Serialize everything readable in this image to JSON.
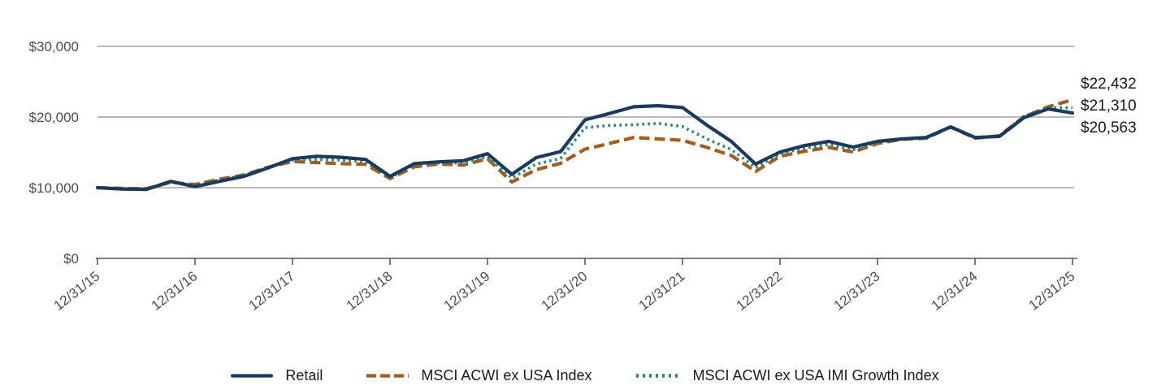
{
  "chart_data": {
    "type": "line",
    "title": "",
    "xlabel": "",
    "ylabel": "",
    "x_unit": "quarterly points from 12/31/15 to 12/31/25",
    "x_ticks": [
      "12/31/15",
      "12/31/16",
      "12/31/17",
      "12/31/18",
      "12/31/19",
      "12/31/20",
      "12/31/21",
      "12/31/22",
      "12/31/23",
      "12/31/24",
      "12/31/25"
    ],
    "y_ticks": [
      "$0",
      "$10,000",
      "$20,000",
      "$30,000"
    ],
    "y_tick_values": [
      0,
      10000,
      20000,
      30000
    ],
    "ylim": [
      0,
      30000
    ],
    "grid": "horizontal",
    "legend_position": "bottom-center",
    "series": [
      {
        "name": "Retail",
        "color": "#1b3a5e",
        "style": "solid",
        "final_value_label": "$20,563",
        "values": [
          10000,
          9800,
          9750,
          10900,
          10150,
          10900,
          11600,
          12800,
          14100,
          14450,
          14300,
          14000,
          11600,
          13400,
          13650,
          13800,
          14800,
          11900,
          14250,
          15100,
          19600,
          20500,
          21450,
          21600,
          21350,
          18850,
          16550,
          13350,
          15050,
          15950,
          16550,
          15750,
          16550,
          16900,
          17100,
          18600,
          17100,
          17250,
          19900,
          21150,
          20563
        ]
      },
      {
        "name": "MSCI ACWI ex USA Index",
        "color": "#a45d1d",
        "style": "dashed",
        "final_value_label": "$22,432",
        "values": [
          10000,
          9900,
          9850,
          10750,
          10450,
          11200,
          11800,
          12900,
          13700,
          13550,
          13400,
          13300,
          11300,
          12950,
          13350,
          13200,
          14100,
          10800,
          12550,
          13450,
          15450,
          16250,
          17100,
          16900,
          16700,
          15700,
          14550,
          12300,
          14450,
          15150,
          15700,
          15050,
          16250,
          16850,
          17000,
          18600,
          17000,
          17350,
          20000,
          21450,
          22432
        ]
      },
      {
        "name": "MSCI ACWI ex USA IMI Growth Index",
        "color": "#1f8a7a",
        "style": "dotted",
        "final_value_label": "$21,310",
        "values": [
          10000,
          9850,
          9800,
          10800,
          10300,
          11100,
          11750,
          12850,
          13900,
          14000,
          13900,
          13650,
          11400,
          13200,
          13500,
          13500,
          14400,
          11350,
          13350,
          14150,
          18500,
          18800,
          18900,
          19100,
          18650,
          16900,
          15400,
          12850,
          14800,
          15600,
          16100,
          15350,
          16400,
          16900,
          17050,
          18650,
          17050,
          17300,
          20100,
          21350,
          21310
        ]
      }
    ],
    "end_labels": [
      "$22,432",
      "$21,310",
      "$20,563"
    ]
  },
  "legend": {
    "items": [
      {
        "label": "Retail"
      },
      {
        "label": "MSCI ACWI ex USA Index"
      },
      {
        "label": "MSCI ACWI ex USA IMI Growth Index"
      }
    ]
  }
}
